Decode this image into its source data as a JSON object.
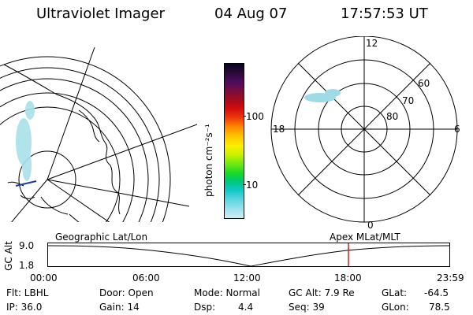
{
  "header": {
    "instrument": "Ultraviolet Imager",
    "date": "04 Aug 07",
    "time": "17:57:53 UT"
  },
  "colorbar": {
    "unit_label": "photon cm⁻²s⁻¹",
    "tick_labels": [
      "100",
      "10"
    ],
    "colors": [
      "#0a0320",
      "#2a0a3a",
      "#4d0c5c",
      "#7a0e3a",
      "#a60c1a",
      "#d20c0c",
      "#ee3a0a",
      "#ff8a00",
      "#ffc400",
      "#ffee00",
      "#c8f000",
      "#6ee810",
      "#18d828",
      "#00c878",
      "#10c8c8",
      "#5ad6e0",
      "#9ae2ec",
      "#d0eef4"
    ]
  },
  "polar_plot": {
    "mlt_labels": {
      "top": "12",
      "left": "18",
      "right": "6",
      "bottom": "0"
    },
    "lat_labels": [
      "60",
      "70",
      "80"
    ]
  },
  "timeline": {
    "left_label": "Geographic Lat/Lon",
    "right_label": "Apex MLat/MLT",
    "y_axis_title": "GC Alt",
    "y_ticks": [
      "9.0",
      "1.8"
    ],
    "x_ticks": [
      "00:00",
      "06:00",
      "12:00",
      "18:00",
      "23:59"
    ],
    "current_marker_time": "17:57:53"
  },
  "status": {
    "flt": "Flt: LBHL",
    "ip": "IP: 36.0",
    "door": "Door: Open",
    "gain": "Gain: 14",
    "mode": "Mode: Normal",
    "dsp_label": "Dsp:",
    "dsp_value": "4.4",
    "gc_alt": "GC Alt: 7.9 Re",
    "seq": "Seq: 39",
    "glat_label": "GLat:",
    "glat_value": "-64.5",
    "glon_label": "GLon:",
    "glon_value": "78.5"
  }
}
